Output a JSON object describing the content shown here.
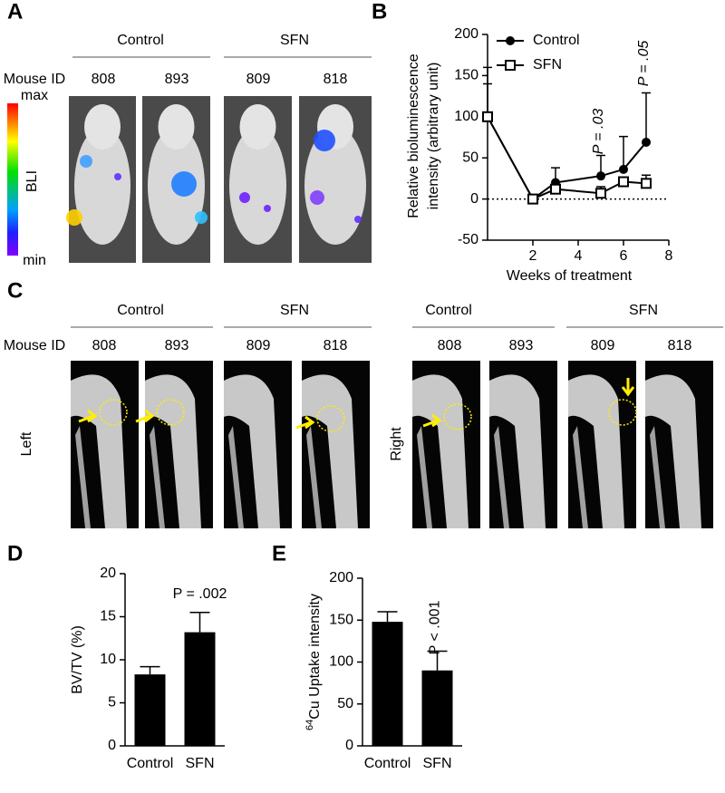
{
  "panel_labels": [
    "A",
    "B",
    "C",
    "D",
    "E"
  ],
  "panel_a": {
    "groups": [
      "Control",
      "SFN"
    ],
    "id_label": "Mouse ID",
    "ids": [
      "808",
      "893",
      "809",
      "818"
    ],
    "scale_max": "max",
    "scale_min": "min",
    "scale_label": "BLI"
  },
  "panel_c": {
    "groups": [
      "Control",
      "SFN",
      "Control",
      "SFN"
    ],
    "id_label": "Mouse ID",
    "ids": [
      "808",
      "893",
      "809",
      "818",
      "808",
      "893",
      "809",
      "818"
    ],
    "sides": [
      "Left",
      "Right"
    ]
  },
  "chart_data": [
    {
      "type": "line",
      "ylabel": [
        "Relative bioluminescence",
        "intensity (arbitrary unit)"
      ],
      "xlabel": "Weeks of treatment",
      "xlim": [
        0,
        8
      ],
      "xticks": [
        2,
        4,
        6,
        8
      ],
      "ylim": [
        -50,
        200
      ],
      "yticks": [
        -50,
        0,
        50,
        100,
        150,
        200
      ],
      "hline": 0,
      "series": [
        {
          "name": "Control",
          "color": "#000000",
          "marker": "circle",
          "x": [
            0,
            2,
            3,
            5,
            6,
            7
          ],
          "values": [
            100,
            0,
            20,
            28,
            36,
            69
          ],
          "errors": [
            40,
            0,
            18,
            25,
            40,
            60
          ]
        },
        {
          "name": "SFN",
          "color": "#000000",
          "marker": "open-square",
          "x": [
            0,
            2,
            3,
            5,
            6,
            7
          ],
          "values": [
            100,
            0,
            12,
            7,
            21,
            19
          ],
          "errors": [
            60,
            0,
            5,
            8,
            5,
            10
          ]
        }
      ],
      "annotations": [
        "P = .03",
        "P = .05"
      ]
    },
    {
      "type": "bar",
      "ylabel": "BV/TV (%)",
      "categories": [
        "Control",
        "SFN"
      ],
      "values": [
        8.3,
        13.2
      ],
      "errors": [
        0.9,
        2.3
      ],
      "color": "#000000",
      "ylim": [
        0,
        20
      ],
      "yticks": [
        0,
        5,
        10,
        15,
        20
      ],
      "annotations": [
        "P = .002"
      ]
    },
    {
      "type": "bar",
      "ylabel_sup": "64",
      "ylabel": "Cu Uptake intensity",
      "categories": [
        "Control",
        "SFN"
      ],
      "values": [
        148,
        90
      ],
      "errors": [
        12,
        23
      ],
      "color": "#000000",
      "ylim": [
        0,
        200
      ],
      "yticks": [
        0,
        50,
        100,
        150,
        200
      ],
      "annotations": [
        "P < .001"
      ]
    }
  ]
}
